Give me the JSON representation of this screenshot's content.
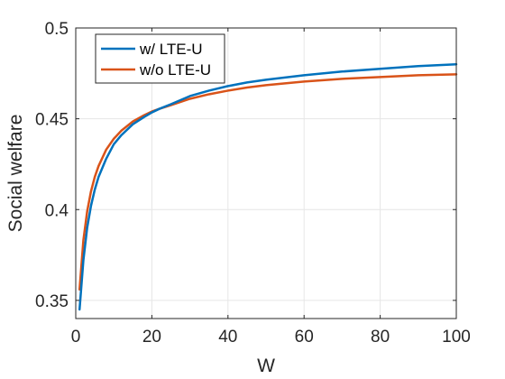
{
  "chart_data": {
    "type": "line",
    "xlabel": "W",
    "ylabel": "Social welfare",
    "xlim": [
      0,
      100
    ],
    "ylim": [
      0.34,
      0.5
    ],
    "xticks": [
      0,
      20,
      40,
      60,
      80,
      100
    ],
    "yticks": [
      0.35,
      0.4,
      0.45,
      0.5
    ],
    "xtick_labels": [
      "0",
      "20",
      "40",
      "60",
      "80",
      "100"
    ],
    "ytick_labels": [
      "0.35",
      "0.4",
      "0.45",
      "0.5"
    ],
    "grid": true,
    "legend_position": "top-left",
    "x": [
      1,
      2,
      3,
      4,
      5,
      6,
      8,
      10,
      12,
      15,
      18,
      20,
      22,
      25,
      30,
      35,
      40,
      45,
      50,
      60,
      70,
      80,
      90,
      100
    ],
    "series": [
      {
        "name": "w/ LTE-U",
        "color": "#0072BD",
        "values": [
          0.345,
          0.372,
          0.39,
          0.402,
          0.411,
          0.418,
          0.428,
          0.436,
          0.441,
          0.447,
          0.451,
          0.4535,
          0.4555,
          0.458,
          0.4625,
          0.4655,
          0.468,
          0.47,
          0.4715,
          0.474,
          0.476,
          0.4775,
          0.479,
          0.48
        ]
      },
      {
        "name": "w/o LTE-U",
        "color": "#D95319",
        "values": [
          0.356,
          0.383,
          0.399,
          0.41,
          0.418,
          0.424,
          0.433,
          0.439,
          0.4435,
          0.4485,
          0.452,
          0.454,
          0.4555,
          0.4575,
          0.461,
          0.4635,
          0.4655,
          0.4672,
          0.4685,
          0.4705,
          0.472,
          0.473,
          0.474,
          0.4745
        ]
      }
    ]
  }
}
